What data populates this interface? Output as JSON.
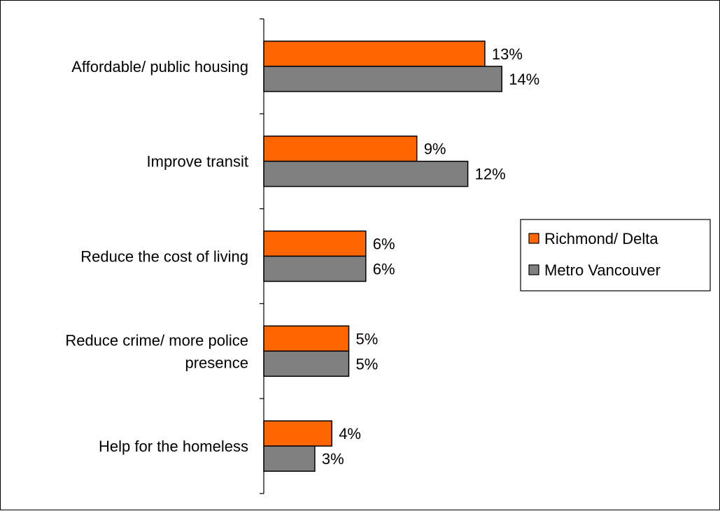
{
  "chart_data": {
    "type": "bar",
    "orientation": "horizontal",
    "categories": [
      [
        "Affordable/ public housing"
      ],
      [
        "Improve transit "
      ],
      [
        "Reduce the cost of living"
      ],
      [
        "Reduce crime/ more police",
        "presence"
      ],
      [
        "Help for the homeless"
      ]
    ],
    "series": [
      {
        "name": "Richmond/ Delta",
        "color": "#FF6600",
        "values": [
          13,
          9,
          6,
          5,
          4
        ]
      },
      {
        "name": "Metro Vancouver",
        "color": "#808080",
        "values": [
          14,
          12,
          6,
          5,
          3
        ]
      }
    ],
    "value_suffix": "%",
    "xlim": [
      0,
      25
    ],
    "grid": false,
    "legend_position": "right"
  }
}
